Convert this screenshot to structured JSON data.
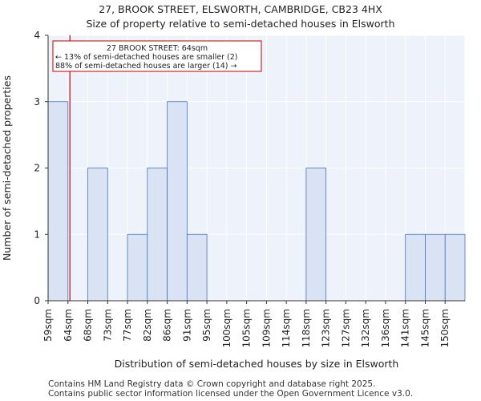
{
  "title_line1": "27, BROOK STREET, ELSWORTH, CAMBRIDGE, CB23 4HX",
  "title_line2": "Size of property relative to semi-detached houses in Elsworth",
  "footer_line1": "Contains HM Land Registry data © Crown copyright and database right 2025.",
  "footer_line2": "Contains public sector information licensed under the Open Government Licence v3.0.",
  "chart_data": {
    "type": "bar",
    "title": "Size of property relative to semi-detached houses in Elsworth",
    "xlabel": "Distribution of semi-detached houses by size in Elsworth",
    "ylabel": "Number of semi-detached properties",
    "categories": [
      "59sqm",
      "64sqm",
      "68sqm",
      "73sqm",
      "77sqm",
      "82sqm",
      "86sqm",
      "91sqm",
      "95sqm",
      "100sqm",
      "105sqm",
      "109sqm",
      "114sqm",
      "118sqm",
      "123sqm",
      "127sqm",
      "132sqm",
      "136sqm",
      "141sqm",
      "145sqm",
      "150sqm"
    ],
    "values": [
      3,
      0,
      2,
      0,
      1,
      2,
      3,
      1,
      0,
      0,
      0,
      0,
      0,
      2,
      0,
      0,
      0,
      0,
      1,
      1,
      1
    ],
    "ylim": [
      0,
      4
    ],
    "yticks": [
      0,
      1,
      2,
      3,
      4
    ],
    "grid": true,
    "bar_color": "#dae3f3",
    "bar_edge_color": "#4472c4",
    "marker": {
      "value_sqm": 64,
      "color": "#c00000",
      "annotation": [
        "27 BROOK STREET: 64sqm",
        "← 13% of semi-detached houses are smaller (2)",
        "88% of semi-detached houses are larger (14) →"
      ]
    }
  }
}
